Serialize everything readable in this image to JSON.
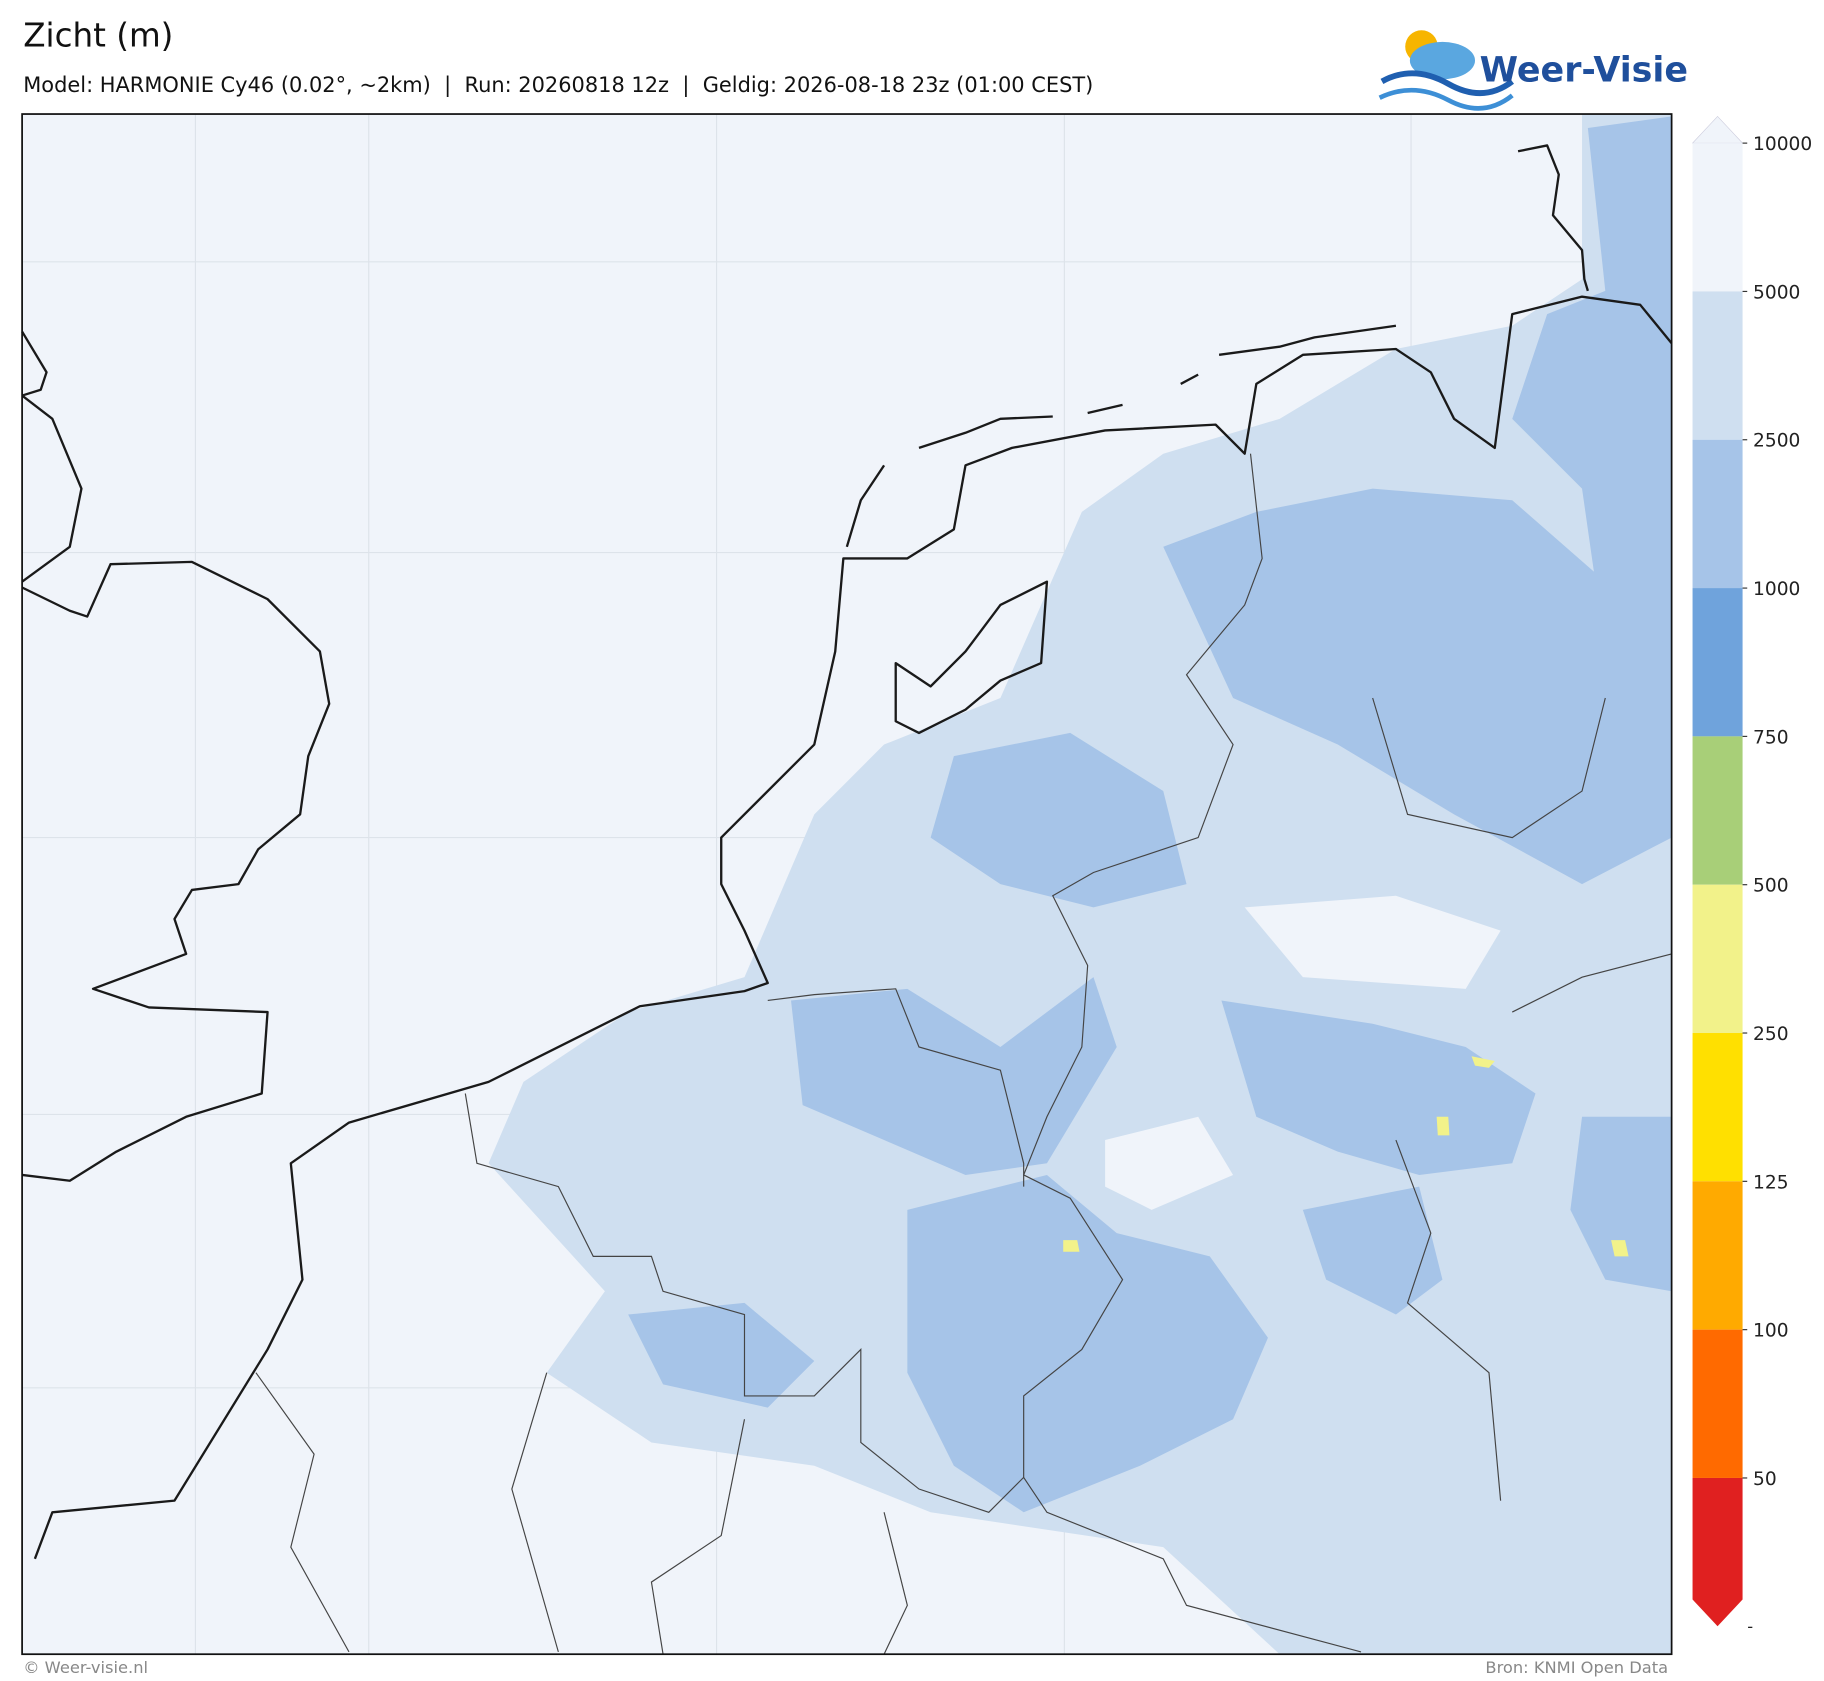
{
  "header": {
    "title": "Zicht (m)",
    "subtitle": "Model: HARMONIE Cy46 (0.02°, ~2km)  |  Run: 20260818 12z  |  Geldig: 2026-08-18 23z (01:00 CEST)"
  },
  "logo": {
    "text": "Weer-Visie"
  },
  "colorbar": {
    "ticks": [
      10000,
      5000,
      2500,
      1000,
      750,
      500,
      250,
      125,
      100,
      50
    ],
    "bottom_label": "-",
    "colors": [
      "#f0f4fa",
      "#cfdff0",
      "#a6c4e8",
      "#6fa3dc",
      "#a8cf78",
      "#f2f28a",
      "#ffe000",
      "#ffaa00",
      "#ff6a00",
      "#e02020"
    ]
  },
  "footer": {
    "left": "© Weer-visie.nl",
    "right": "Bron: KNMI Open Data"
  }
}
